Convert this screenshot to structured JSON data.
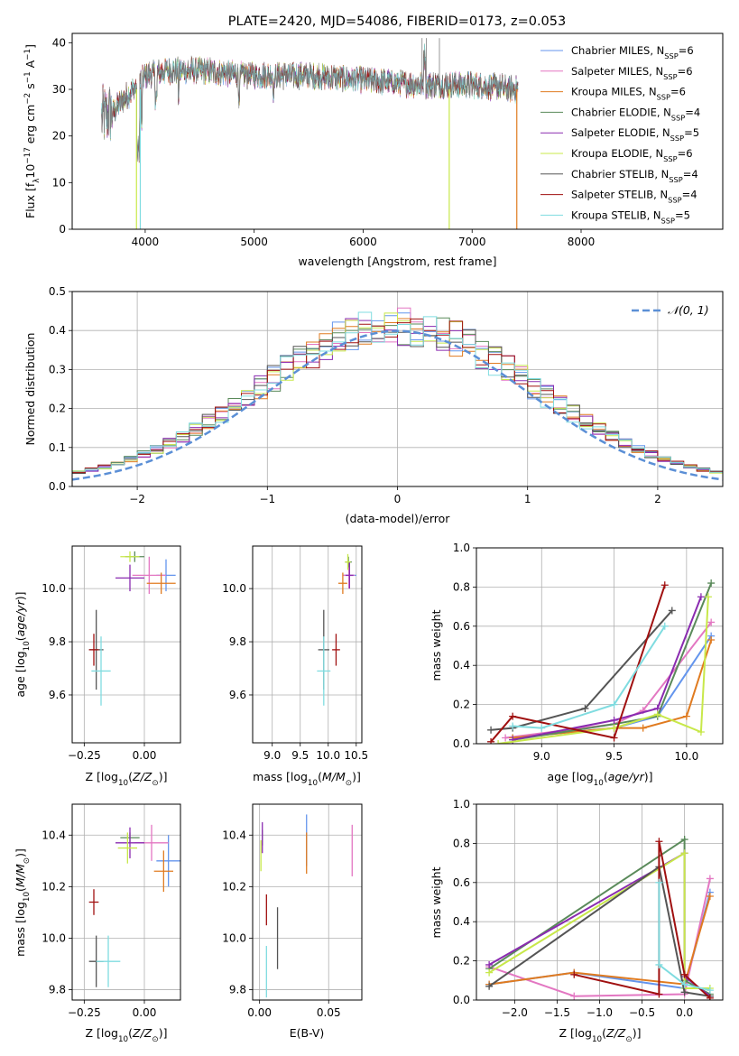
{
  "colors": {
    "chabrier_miles": "#6495ED",
    "salpeter_miles": "#E377C2",
    "kroupa_miles": "#E07B20",
    "chabrier_elodie": "#5A8A5A",
    "salpeter_elodie": "#8A2BB0",
    "kroupa_elodie": "#C8E84A",
    "chabrier_stelib": "#555555",
    "salpeter_stelib": "#A01010",
    "kroupa_stelib": "#80DCE0",
    "gauss": "#5B8FD6",
    "grid": "#B0B0B0"
  },
  "chart_data": [
    {
      "type": "line",
      "id": "spectrum",
      "title": "PLATE=2420, MJD=54086, FIBERID=0173, z=0.053",
      "xlabel": "wavelength [Angstrom, rest frame]",
      "ylabel": "Flux [fλ10⁻¹⁷ erg cm⁻² s⁻¹ A⁻¹]",
      "xlim": [
        3330,
        9300
      ],
      "ylim": [
        0,
        42
      ],
      "x_ticks": [
        "4000",
        "5000",
        "6000",
        "7000",
        "8000"
      ],
      "y_ticks": [
        "0",
        "10",
        "20",
        "30",
        "40"
      ],
      "grid": false,
      "legend_position": "top-right",
      "legend": [
        {
          "label": "Chabrier MILES, N",
          "sub": "SSP",
          "suffix": "=6"
        },
        {
          "label": "Salpeter MILES, N",
          "sub": "SSP",
          "suffix": "=6"
        },
        {
          "label": "Kroupa MILES, N",
          "sub": "SSP",
          "suffix": "=6"
        },
        {
          "label": "Chabrier ELODIE, N",
          "sub": "SSP",
          "suffix": "=4"
        },
        {
          "label": "Salpeter ELODIE, N",
          "sub": "SSP",
          "suffix": "=5"
        },
        {
          "label": "Kroupa ELODIE, N",
          "sub": "SSP",
          "suffix": "=6"
        },
        {
          "label": "Chabrier STELIB, N",
          "sub": "SSP",
          "suffix": "=4"
        },
        {
          "label": "Salpeter STELIB, N",
          "sub": "SSP",
          "suffix": "=4"
        },
        {
          "label": "Kroupa STELIB, N",
          "sub": "SSP",
          "suffix": "=5"
        }
      ],
      "continuum": {
        "x": [
          3600,
          3700,
          3800,
          3900,
          4000,
          4200,
          4500,
          5000,
          5500,
          6000,
          6500,
          7000,
          7400
        ],
        "y": [
          24,
          25,
          28,
          30,
          33,
          34,
          34,
          33,
          33,
          32,
          31,
          31,
          30
        ]
      }
    },
    {
      "type": "line",
      "id": "residuals",
      "xlabel": "(data-model)/error",
      "ylabel": "Normed distribution",
      "xlim": [
        -2.5,
        2.5
      ],
      "ylim": [
        0,
        0.5
      ],
      "x_ticks": [
        "−2",
        "−1",
        "0",
        "1",
        "2"
      ],
      "y_ticks": [
        "0.0",
        "0.1",
        "0.2",
        "0.3",
        "0.4",
        "0.5"
      ],
      "grid": true,
      "legend_position": "top-right",
      "legend": [
        {
          "label": "𝒩(0, 1)"
        }
      ],
      "bin_width": 0.1
    },
    {
      "type": "scatter",
      "id": "age_vs_Z",
      "xlabel": "Z [log₁₀(Z/Z⊙)]",
      "ylabel": "age  [log₁₀(age/yr)]",
      "xlim": [
        -0.3,
        0.15
      ],
      "ylim": [
        9.42,
        10.16
      ],
      "x_ticks": [
        "−0.25",
        "0.00"
      ],
      "y_ticks": [
        "9.6",
        "9.8",
        "10.0"
      ],
      "grid": true,
      "points": [
        {
          "model": "chabrier_miles",
          "x": 0.09,
          "y": 10.05,
          "xerr": 0.04,
          "yerr": 0.06
        },
        {
          "model": "salpeter_miles",
          "x": 0.02,
          "y": 10.05,
          "xerr": 0.07,
          "yerr": 0.07
        },
        {
          "model": "kroupa_miles",
          "x": 0.07,
          "y": 10.02,
          "xerr": 0.06,
          "yerr": 0.04
        },
        {
          "model": "chabrier_elodie",
          "x": -0.04,
          "y": 10.12,
          "xerr": 0.04,
          "yerr": 0.02
        },
        {
          "model": "salpeter_elodie",
          "x": -0.06,
          "y": 10.04,
          "xerr": 0.06,
          "yerr": 0.05
        },
        {
          "model": "kroupa_elodie",
          "x": -0.06,
          "y": 10.12,
          "xerr": 0.04,
          "yerr": 0.02
        },
        {
          "model": "chabrier_stelib",
          "x": -0.2,
          "y": 9.77,
          "xerr": 0.03,
          "yerr": 0.15
        },
        {
          "model": "salpeter_stelib",
          "x": -0.21,
          "y": 9.77,
          "xerr": 0.02,
          "yerr": 0.06
        },
        {
          "model": "kroupa_stelib",
          "x": -0.18,
          "y": 9.69,
          "xerr": 0.04,
          "yerr": 0.13
        }
      ]
    },
    {
      "type": "scatter",
      "id": "age_vs_mass",
      "xlabel": "mass [log₁₀(M/M⊙)]",
      "ylabel": "",
      "xlim": [
        8.65,
        10.6
      ],
      "ylim": [
        9.42,
        10.16
      ],
      "x_ticks": [
        "9.0",
        "9.5",
        "10.0",
        "10.5"
      ],
      "y_ticks": [
        "9.6",
        "9.8",
        "10.0"
      ],
      "grid": true,
      "points": [
        {
          "model": "chabrier_miles",
          "x": 10.38,
          "y": 10.05,
          "xerr": 0.12,
          "yerr": 0.05
        },
        {
          "model": "salpeter_miles",
          "x": 10.37,
          "y": 10.05,
          "xerr": 0.1,
          "yerr": 0.05
        },
        {
          "model": "kroupa_miles",
          "x": 10.26,
          "y": 10.02,
          "xerr": 0.08,
          "yerr": 0.04
        },
        {
          "model": "chabrier_elodie",
          "x": 10.36,
          "y": 10.1,
          "xerr": 0.06,
          "yerr": 0.02
        },
        {
          "model": "salpeter_elodie",
          "x": 10.38,
          "y": 10.05,
          "xerr": 0.07,
          "yerr": 0.05
        },
        {
          "model": "kroupa_elodie",
          "x": 10.35,
          "y": 10.1,
          "xerr": 0.05,
          "yerr": 0.03
        },
        {
          "model": "chabrier_stelib",
          "x": 9.92,
          "y": 9.77,
          "xerr": 0.1,
          "yerr": 0.15
        },
        {
          "model": "salpeter_stelib",
          "x": 10.14,
          "y": 9.77,
          "xerr": 0.07,
          "yerr": 0.06
        },
        {
          "model": "kroupa_stelib",
          "x": 9.92,
          "y": 9.69,
          "xerr": 0.12,
          "yerr": 0.13
        }
      ]
    },
    {
      "type": "line",
      "id": "mass_weight_vs_age",
      "xlabel": "age  [log₁₀(age/yr)]",
      "ylabel": "mass weight",
      "xlim": [
        8.55,
        10.25
      ],
      "ylim": [
        0,
        1
      ],
      "x_ticks": [
        "9.0",
        "9.5",
        "10.0"
      ],
      "y_ticks": [
        "0.0",
        "0.2",
        "0.4",
        "0.6",
        "0.8",
        "1.0"
      ],
      "grid": true,
      "series": [
        {
          "model": "chabrier_miles",
          "x": [
            8.8,
            9.5,
            9.8,
            10.17
          ],
          "y": [
            0.03,
            0.08,
            0.14,
            0.55
          ]
        },
        {
          "model": "salpeter_miles",
          "x": [
            8.75,
            9.5,
            9.7,
            10.17
          ],
          "y": [
            0.03,
            0.1,
            0.17,
            0.62
          ]
        },
        {
          "model": "kroupa_miles",
          "x": [
            8.8,
            9.5,
            9.7,
            10.0,
            10.17
          ],
          "y": [
            0.03,
            0.08,
            0.08,
            0.14,
            0.53
          ]
        },
        {
          "model": "chabrier_elodie",
          "x": [
            8.8,
            9.5,
            9.8,
            10.17
          ],
          "y": [
            0.02,
            0.1,
            0.14,
            0.82
          ]
        },
        {
          "model": "salpeter_elodie",
          "x": [
            8.8,
            9.5,
            9.8,
            10.1
          ],
          "y": [
            0.02,
            0.12,
            0.18,
            0.75
          ]
        },
        {
          "model": "kroupa_elodie",
          "x": [
            8.7,
            9.5,
            9.8,
            10.1,
            10.15
          ],
          "y": [
            0.0,
            0.08,
            0.15,
            0.06,
            0.75
          ]
        },
        {
          "model": "chabrier_stelib",
          "x": [
            8.65,
            8.8,
            9.3,
            9.9
          ],
          "y": [
            0.07,
            0.08,
            0.18,
            0.68
          ]
        },
        {
          "model": "salpeter_stelib",
          "x": [
            8.65,
            8.8,
            9.5,
            9.85
          ],
          "y": [
            0.01,
            0.14,
            0.03,
            0.81
          ]
        },
        {
          "model": "kroupa_stelib",
          "x": [
            8.8,
            9.0,
            9.5,
            9.85
          ],
          "y": [
            0.09,
            0.08,
            0.2,
            0.6
          ]
        }
      ]
    },
    {
      "type": "scatter",
      "id": "mass_vs_Z",
      "xlabel": "Z [log₁₀(Z/Z⊙)]",
      "ylabel": "mass [log₁₀(M/M⊙)]",
      "xlim": [
        -0.3,
        0.15
      ],
      "ylim": [
        9.76,
        10.52
      ],
      "x_ticks": [
        "−0.25",
        "0.00"
      ],
      "y_ticks": [
        "9.8",
        "10.0",
        "10.2",
        "10.4"
      ],
      "grid": true,
      "points": [
        {
          "model": "chabrier_miles",
          "x": 0.1,
          "y": 10.3,
          "xerr": 0.05,
          "yerr": 0.1
        },
        {
          "model": "salpeter_miles",
          "x": 0.03,
          "y": 10.37,
          "xerr": 0.07,
          "yerr": 0.07
        },
        {
          "model": "kroupa_miles",
          "x": 0.08,
          "y": 10.26,
          "xerr": 0.04,
          "yerr": 0.08
        },
        {
          "model": "chabrier_elodie",
          "x": -0.06,
          "y": 10.39,
          "xerr": 0.04,
          "yerr": 0.02
        },
        {
          "model": "salpeter_elodie",
          "x": -0.06,
          "y": 10.37,
          "xerr": 0.06,
          "yerr": 0.06
        },
        {
          "model": "kroupa_elodie",
          "x": -0.07,
          "y": 10.35,
          "xerr": 0.04,
          "yerr": 0.06
        },
        {
          "model": "chabrier_stelib",
          "x": -0.2,
          "y": 9.91,
          "xerr": 0.03,
          "yerr": 0.1
        },
        {
          "model": "salpeter_stelib",
          "x": -0.21,
          "y": 10.14,
          "xerr": 0.02,
          "yerr": 0.05
        },
        {
          "model": "kroupa_stelib",
          "x": -0.15,
          "y": 9.91,
          "xerr": 0.05,
          "yerr": 0.1
        }
      ]
    },
    {
      "type": "scatter",
      "id": "mass_vs_ebv",
      "xlabel": "E(B-V)",
      "ylabel": "",
      "xlim": [
        -0.005,
        0.074
      ],
      "ylim": [
        9.76,
        10.52
      ],
      "x_ticks": [
        "0.00",
        "0.05"
      ],
      "y_ticks": [
        "9.8",
        "10.0",
        "10.2",
        "10.4"
      ],
      "grid": true,
      "points": [
        {
          "model": "chabrier_miles",
          "x": 0.034,
          "y": 10.38,
          "xerr": 0,
          "yerr": 0.1
        },
        {
          "model": "salpeter_miles",
          "x": 0.067,
          "y": 10.34,
          "xerr": 0,
          "yerr": 0.1
        },
        {
          "model": "kroupa_miles",
          "x": 0.034,
          "y": 10.33,
          "xerr": 0,
          "yerr": 0.08
        },
        {
          "model": "chabrier_elodie",
          "x": 0.002,
          "y": 10.39,
          "xerr": 0,
          "yerr": 0.03
        },
        {
          "model": "salpeter_elodie",
          "x": 0.002,
          "y": 10.39,
          "xerr": 0,
          "yerr": 0.06
        },
        {
          "model": "kroupa_elodie",
          "x": 0.001,
          "y": 10.32,
          "xerr": 0,
          "yerr": 0.06
        },
        {
          "model": "chabrier_stelib",
          "x": 0.013,
          "y": 10.0,
          "xerr": 0,
          "yerr": 0.12
        },
        {
          "model": "salpeter_stelib",
          "x": 0.005,
          "y": 10.11,
          "xerr": 0,
          "yerr": 0.06
        },
        {
          "model": "kroupa_stelib",
          "x": 0.005,
          "y": 9.87,
          "xerr": 0,
          "yerr": 0.1
        }
      ]
    },
    {
      "type": "line",
      "id": "mass_weight_vs_Z",
      "xlabel": "Z [log₁₀(Z/Z⊙)]",
      "ylabel": "mass weight",
      "xlim": [
        -2.45,
        0.45
      ],
      "ylim": [
        0,
        1
      ],
      "x_ticks": [
        "−2.0",
        "−1.5",
        "−1.0",
        "−0.5",
        "0.0"
      ],
      "y_ticks": [
        "0.0",
        "0.2",
        "0.4",
        "0.6",
        "0.8",
        "1.0"
      ],
      "grid": true,
      "series": [
        {
          "model": "chabrier_miles",
          "x": [
            -2.3,
            -1.3,
            0.0,
            0.3
          ],
          "y": [
            0.08,
            0.14,
            0.06,
            0.55
          ]
        },
        {
          "model": "salpeter_miles",
          "x": [
            -2.3,
            -1.3,
            0.0,
            0.3
          ],
          "y": [
            0.17,
            0.02,
            0.03,
            0.62
          ]
        },
        {
          "model": "kroupa_miles",
          "x": [
            -2.3,
            -1.3,
            0.0,
            0.3
          ],
          "y": [
            0.08,
            0.14,
            0.08,
            0.53
          ]
        },
        {
          "model": "chabrier_elodie",
          "x": [
            -2.3,
            0.0,
            0.0,
            0.3
          ],
          "y": [
            0.16,
            0.82,
            0.1,
            0.03
          ]
        },
        {
          "model": "salpeter_elodie",
          "x": [
            -2.3,
            0.0,
            0.0,
            0.3
          ],
          "y": [
            0.18,
            0.75,
            0.12,
            0.02
          ]
        },
        {
          "model": "kroupa_elodie",
          "x": [
            -2.3,
            0.0,
            0.0,
            0.3
          ],
          "y": [
            0.14,
            0.75,
            0.06,
            0.06
          ]
        },
        {
          "model": "chabrier_stelib",
          "x": [
            -2.3,
            -0.3,
            0.0,
            0.3
          ],
          "y": [
            0.07,
            0.68,
            0.04,
            0.02
          ]
        },
        {
          "model": "salpeter_stelib",
          "x": [
            -1.3,
            -0.3,
            -0.3,
            0.0,
            0.3
          ],
          "y": [
            0.13,
            0.03,
            0.81,
            0.13,
            0.01
          ]
        },
        {
          "model": "kroupa_stelib",
          "x": [
            -0.3,
            -0.3,
            0.0,
            0.3
          ],
          "y": [
            0.6,
            0.18,
            0.08,
            0.05
          ]
        }
      ]
    }
  ]
}
